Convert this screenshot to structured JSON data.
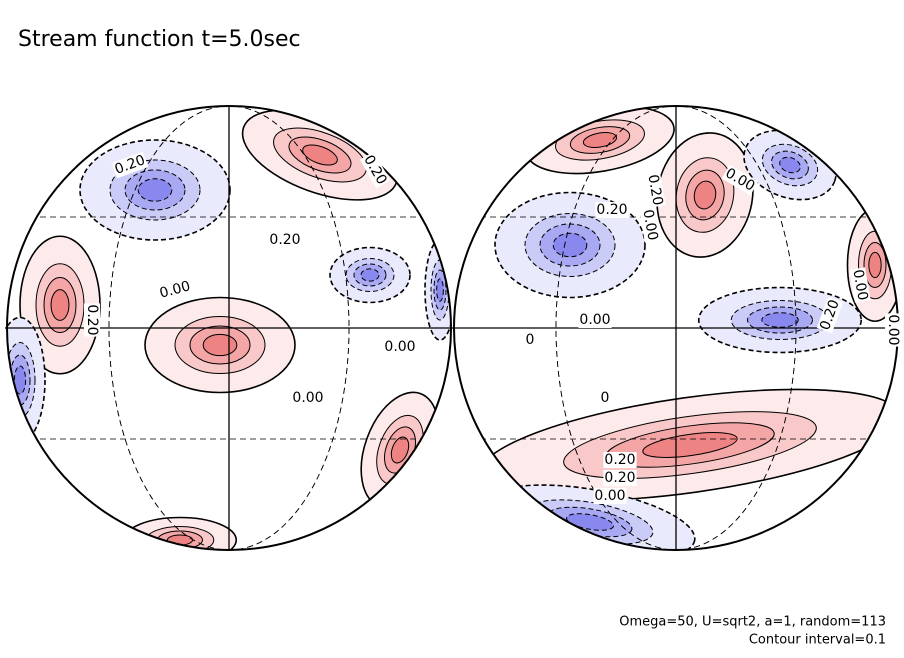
{
  "chart_data": {
    "type": "contour",
    "title": "Stream function t=5.0sec",
    "annotations": [
      "0.20",
      "0.20",
      "0.20",
      "0.00",
      "0.20",
      "0.00",
      "0.00",
      "0.00",
      "0.20",
      "0.20",
      "0.00",
      "0.00",
      "0.00",
      "0.20",
      "0.00",
      "0.20",
      "0.20",
      "0.00",
      "0",
      "0"
    ],
    "footnotes": [
      "Omega=50, U=sqrt2, a=1, random=113",
      "Contour interval=0.1"
    ]
  }
}
